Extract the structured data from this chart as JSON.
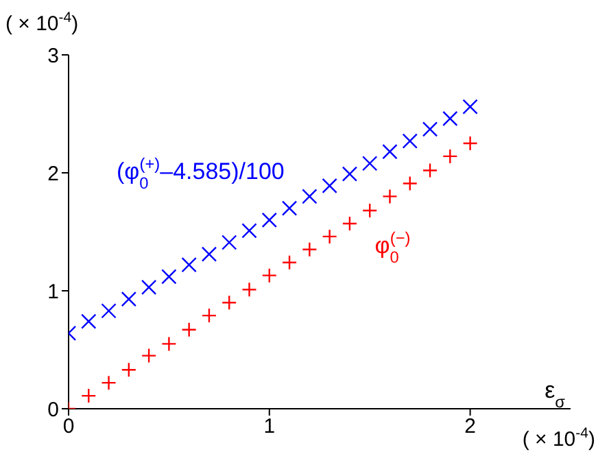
{
  "chart_data": {
    "type": "scatter",
    "xlabel": "ε$_{σ}$",
    "ylabel": "( × 10$^{-4}$)",
    "annotations": [
      "( × 10$^{-4}$)"
    ],
    "x": [
      0,
      0.1,
      0.2,
      0.3,
      0.4,
      0.5,
      0.6,
      0.7,
      0.8,
      0.9,
      1.0,
      1.1,
      1.2,
      1.3,
      1.4,
      1.5,
      1.6,
      1.7,
      1.8,
      1.9,
      2.0
    ],
    "series": [
      {
        "name": "(φ$_{0}$$^{(+)}$–4.585)/100",
        "color": "#0000ff",
        "marker": "cross",
        "values": [
          0.64,
          0.74,
          0.83,
          0.93,
          1.03,
          1.12,
          1.22,
          1.31,
          1.41,
          1.51,
          1.6,
          1.7,
          1.8,
          1.89,
          1.99,
          2.08,
          2.18,
          2.27,
          2.37,
          2.46,
          2.56
        ]
      },
      {
        "name": "φ$_{0}$$^{(−)}$",
        "color": "#ff0000",
        "marker": "plus",
        "values": [
          0,
          0.11,
          0.22,
          0.33,
          0.45,
          0.55,
          0.67,
          0.79,
          0.9,
          1.01,
          1.13,
          1.24,
          1.35,
          1.46,
          1.57,
          1.68,
          1.8,
          1.91,
          2.02,
          2.14,
          2.25
        ]
      }
    ],
    "xlim": [
      0,
      2.5
    ],
    "xticks": [
      0,
      1,
      2
    ],
    "ylim": [
      0,
      3
    ],
    "yticks": [
      0,
      1,
      2,
      3
    ],
    "grid": false,
    "legend": false
  }
}
